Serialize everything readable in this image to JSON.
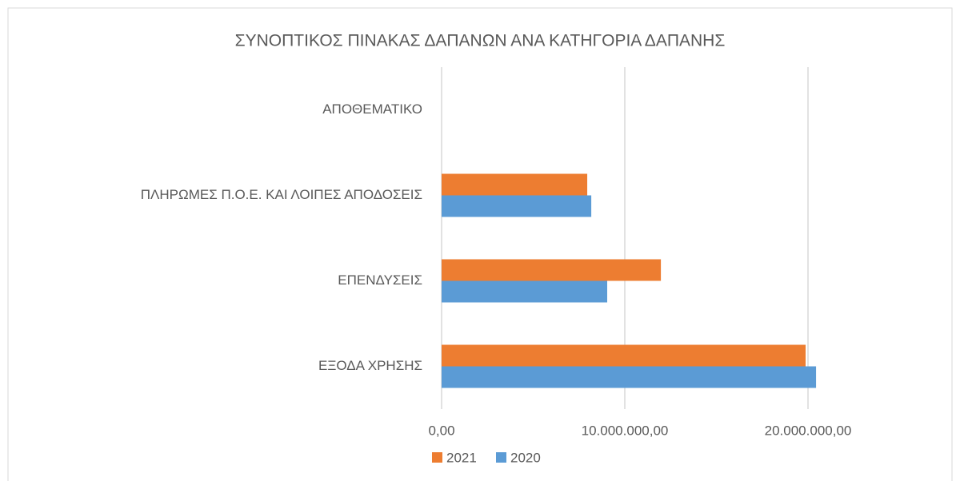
{
  "chart_data": {
    "type": "hbar",
    "title": "ΣΥΝΟΠΤΙΚΟΣ ΠΙΝΑΚΑΣ ΔΑΠΑΝΩΝ ΑΝΑ ΚΑΤΗΓΟΡΙΑ ΔΑΠΑΝΗΣ",
    "categories": [
      "ΑΠΟΘΕΜΑΤΙΚΟ",
      "ΠΛΗΡΩΜΕΣ Π.Ο.Ε. ΚΑΙ ΛΟΙΠΕΣ ΑΠΟΔΟΣΕΙΣ",
      "ΕΠΕΝΔΥΣΕΙΣ",
      "ΕΞΟΔΑ ΧΡΗΣΗΣ"
    ],
    "series": [
      {
        "name": "2021",
        "color": "#ed7d31",
        "values": [
          0,
          7950000,
          11970000,
          19870000
        ]
      },
      {
        "name": "2020",
        "color": "#5b9bd5",
        "values": [
          0,
          8170000,
          9040000,
          20440000
        ]
      }
    ],
    "xlim": [
      0,
      25000000
    ],
    "xticks": [
      {
        "value": 0,
        "label": "0,00"
      },
      {
        "value": 10000000,
        "label": "10.000.000,00"
      },
      {
        "value": 20000000,
        "label": "20.000.000,00"
      }
    ],
    "grid": true,
    "legend": "bottom"
  }
}
